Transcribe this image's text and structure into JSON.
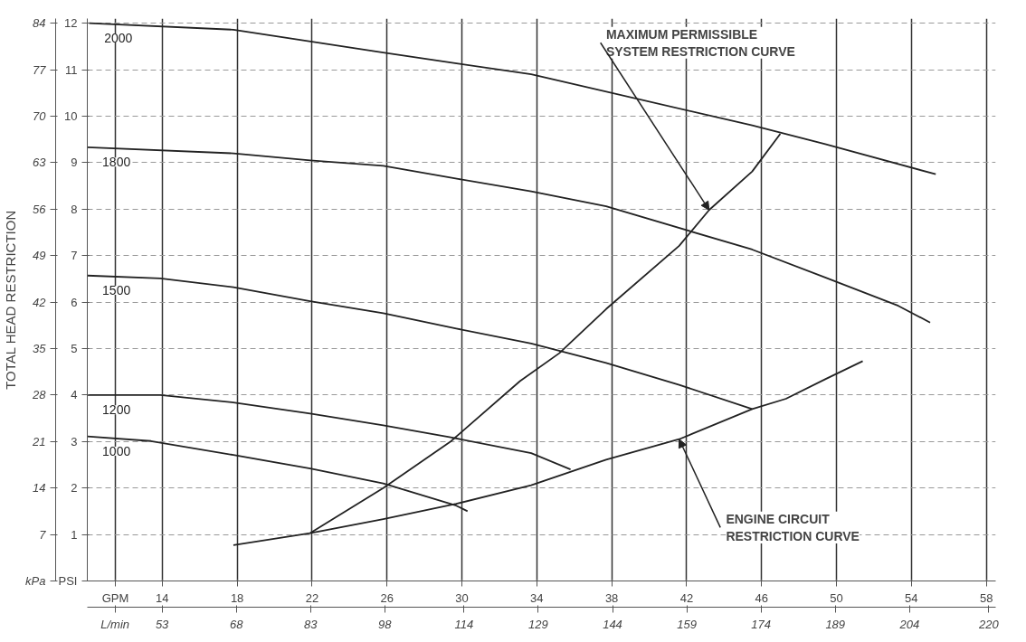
{
  "chart_data": {
    "type": "line",
    "y2label": "TOTAL HEAD RESTRICTION",
    "xlim": [
      10,
      58.5
    ],
    "ylim": [
      0,
      12.1
    ],
    "xticks": [
      {
        "value": 11.5,
        "label": "GPM"
      },
      14,
      18,
      22,
      26,
      30,
      34,
      38,
      42,
      46,
      50,
      54,
      58
    ],
    "x2lim": [
      37.9,
      221.4
    ],
    "x2ticks": [
      {
        "value": 43.5,
        "label": "L/min"
      },
      53,
      68,
      83,
      98,
      114,
      129,
      144,
      159,
      174,
      189,
      204,
      220
    ],
    "yticks": [
      {
        "value": 0,
        "label": "PSI"
      },
      1,
      2,
      3,
      4,
      5,
      6,
      7,
      8,
      9,
      10,
      11,
      12
    ],
    "y2lim": [
      0,
      84.7
    ],
    "y2ticks": [
      {
        "value": 0,
        "label": "kPa"
      },
      7,
      14,
      21,
      28,
      35,
      42,
      49,
      56,
      63,
      70,
      77,
      84
    ],
    "grid": true,
    "legend": false,
    "marker": "none",
    "line_style": "solid",
    "series": [
      {
        "name": "2000",
        "color": "#222222",
        "x": [
          10.1,
          17.8,
          25.8,
          29.8,
          33.7,
          45.5,
          49.4,
          55.3
        ],
        "values": [
          12.0,
          11.86,
          11.37,
          11.13,
          10.9,
          9.8,
          9.4,
          8.75
        ]
      },
      {
        "name": "1800",
        "color": "#222222",
        "x": [
          10.0,
          17.8,
          21.9,
          25.8,
          29.8,
          33.7,
          37.7,
          45.5,
          49.4,
          53.3,
          55.0
        ],
        "values": [
          9.33,
          9.2,
          9.05,
          8.93,
          8.65,
          8.38,
          8.06,
          7.13,
          6.53,
          5.92,
          5.56
        ]
      },
      {
        "name": "1500",
        "color": "#222222",
        "x": [
          10.0,
          13.9,
          17.8,
          21.9,
          25.8,
          29.7,
          33.7,
          37.7,
          41.6,
          45.5
        ],
        "values": [
          6.57,
          6.51,
          6.32,
          6.02,
          5.76,
          5.43,
          5.11,
          4.69,
          4.22,
          3.7
        ]
      },
      {
        "name": "1200",
        "color": "#222222",
        "x": [
          10.0,
          13.9,
          17.8,
          21.9,
          25.8,
          29.4,
          33.7,
          35.8
        ],
        "values": [
          4.0,
          4.0,
          3.84,
          3.6,
          3.35,
          3.09,
          2.75,
          2.4
        ]
      },
      {
        "name": "1000",
        "color": "#222222",
        "x": [
          10.0,
          13.4,
          17.8,
          21.9,
          25.8,
          29.7,
          30.3
        ],
        "values": [
          3.11,
          3.01,
          2.71,
          2.42,
          2.1,
          1.62,
          1.5
        ]
      },
      {
        "color": "#222222",
        "x": [
          17.8,
          21.9,
          25.8,
          29.7,
          33.7,
          37.7,
          41.6,
          45.5,
          47.3,
          49.4,
          51.4
        ],
        "values": [
          0.77,
          1.03,
          1.33,
          1.66,
          2.06,
          2.61,
          3.05,
          3.7,
          3.92,
          4.34,
          4.73
        ]
      },
      {
        "color": "#222222",
        "x": [
          21.9,
          25.8,
          29.4,
          33.1,
          35.2,
          37.7,
          41.6,
          43.2,
          45.5,
          47.0
        ],
        "values": [
          1.03,
          2.0,
          3.0,
          4.3,
          4.9,
          5.85,
          7.21,
          7.98,
          8.81,
          9.62
        ]
      }
    ],
    "annotations": [
      {
        "text": "MAXIMUM PERMISSIBLE\nSYSTEM RESTRICTION CURVE",
        "x": 43.2,
        "y": 7.98
      },
      {
        "text": "ENGINE CIRCUIT\nRESTRICTION CURVE",
        "x": 41.6,
        "y": 3.05
      }
    ]
  }
}
